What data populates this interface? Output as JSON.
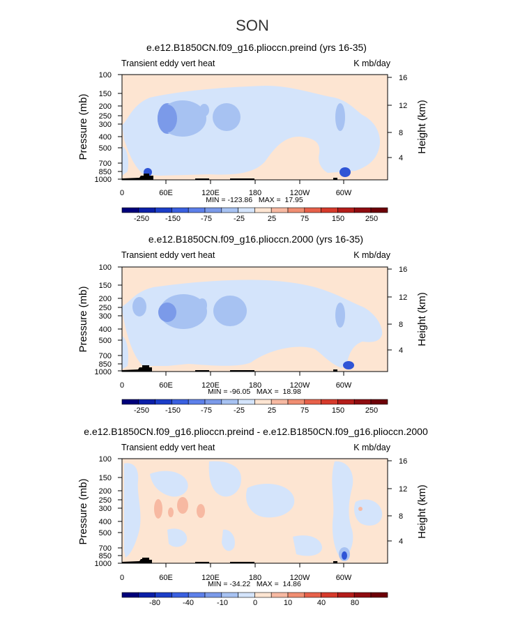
{
  "figure": {
    "season": "SON"
  },
  "colors": {
    "bg_light_orange": "#fde5d2",
    "bg_light_blue": "#d4e4fb",
    "mid_blue": "#a7c2f2",
    "deep_blue": "#7b9ae9",
    "strong_blue": "#2f55d6",
    "light_red": "#f7b9a2",
    "terrain": "#000000"
  },
  "chart_data": [
    {
      "type": "heatmap",
      "title": "e.e12.B1850CN.f09_g16.plioccn.preind (yrs 16-35)",
      "left_label": "Transient eddy vert heat",
      "right_label": "K mb/day",
      "ylabel": "Pressure (mb)",
      "ylabel_right": "Height (km)",
      "y_ticks": [
        "100",
        "150",
        "200",
        "250",
        "300",
        "400",
        "500",
        "700",
        "850",
        "1000"
      ],
      "y_ticks_right": [
        "16",
        "12",
        "8",
        "4"
      ],
      "x_ticks": [
        "0",
        "60E",
        "120E",
        "180",
        "120W",
        "60W"
      ],
      "stats": "MIN = -123.86   MAX =  17.95",
      "colorbar_labels": [
        "-250",
        "-150",
        "-75",
        "-25",
        "25",
        "75",
        "150",
        "250"
      ],
      "colorbar_levels": [
        -250,
        -200,
        -150,
        -100,
        -75,
        -50,
        -25,
        0,
        25,
        50,
        75,
        100,
        150,
        200,
        250
      ]
    },
    {
      "type": "heatmap",
      "title": "e.e12.B1850CN.f09_g16.plioccn.2000 (yrs 16-35)",
      "left_label": "Transient eddy vert heat",
      "right_label": "K mb/day",
      "ylabel": "Pressure (mb)",
      "ylabel_right": "Height (km)",
      "y_ticks": [
        "100",
        "150",
        "200",
        "250",
        "300",
        "400",
        "500",
        "700",
        "850",
        "1000"
      ],
      "y_ticks_right": [
        "16",
        "12",
        "8",
        "4"
      ],
      "x_ticks": [
        "0",
        "60E",
        "120E",
        "180",
        "120W",
        "60W"
      ],
      "stats": "MIN = -96.05   MAX =  18.98",
      "colorbar_labels": [
        "-250",
        "-150",
        "-75",
        "-25",
        "25",
        "75",
        "150",
        "250"
      ],
      "colorbar_levels": [
        -250,
        -200,
        -150,
        -100,
        -75,
        -50,
        -25,
        0,
        25,
        50,
        75,
        100,
        150,
        200,
        250
      ]
    },
    {
      "type": "heatmap",
      "title": "e.e12.B1850CN.f09_g16.plioccn.preind - e.e12.B1850CN.f09_g16.plioccn.2000",
      "left_label": "Transient eddy vert heat",
      "right_label": "K mb/day",
      "ylabel": "Pressure (mb)",
      "ylabel_right": "Height (km)",
      "y_ticks": [
        "100",
        "150",
        "200",
        "250",
        "300",
        "400",
        "500",
        "700",
        "850",
        "1000"
      ],
      "y_ticks_right": [
        "16",
        "12",
        "8",
        "4"
      ],
      "x_ticks": [
        "0",
        "60E",
        "120E",
        "180",
        "120W",
        "60W"
      ],
      "stats": "MIN = -34.22   MAX =  14.86",
      "colorbar_labels": [
        "-80",
        "-40",
        "-10",
        "0",
        "10",
        "40",
        "80"
      ],
      "colorbar_levels": [
        -100,
        -80,
        -60,
        -40,
        -20,
        -10,
        -5,
        0,
        5,
        10,
        20,
        40,
        60,
        80,
        100
      ]
    }
  ]
}
